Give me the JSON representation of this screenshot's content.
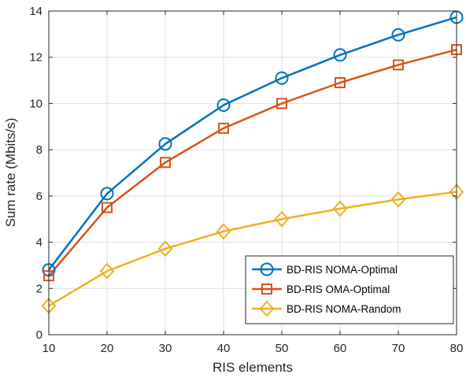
{
  "chart_data": {
    "type": "line",
    "title": "",
    "xlabel": "RIS elements",
    "ylabel": "Sum rate (Mbits/s)",
    "x": [
      10,
      20,
      30,
      40,
      50,
      60,
      70,
      80
    ],
    "xlim": [
      10,
      80
    ],
    "ylim": [
      0,
      14
    ],
    "xticks": [
      "10",
      "20",
      "30",
      "40",
      "50",
      "60",
      "70",
      "80"
    ],
    "yticks": [
      "0",
      "2",
      "4",
      "6",
      "8",
      "10",
      "12",
      "14"
    ],
    "grid": true,
    "legend_position": "bottom-right",
    "series": [
      {
        "name": "BD-RIS NOMA-Optimal",
        "color": "#0072BD",
        "marker": "circle",
        "values": [
          2.8,
          6.1,
          8.25,
          9.93,
          11.1,
          12.1,
          12.97,
          13.73
        ]
      },
      {
        "name": "BD-RIS OMA-Optimal",
        "color": "#D95319",
        "marker": "square",
        "values": [
          2.55,
          5.5,
          7.45,
          8.93,
          10.0,
          10.9,
          11.67,
          12.33
        ]
      },
      {
        "name": "BD-RIS NOMA-Random",
        "color": "#EDB120",
        "marker": "diamond",
        "values": [
          1.25,
          2.75,
          3.72,
          4.47,
          5.0,
          5.45,
          5.85,
          6.18
        ]
      }
    ]
  }
}
